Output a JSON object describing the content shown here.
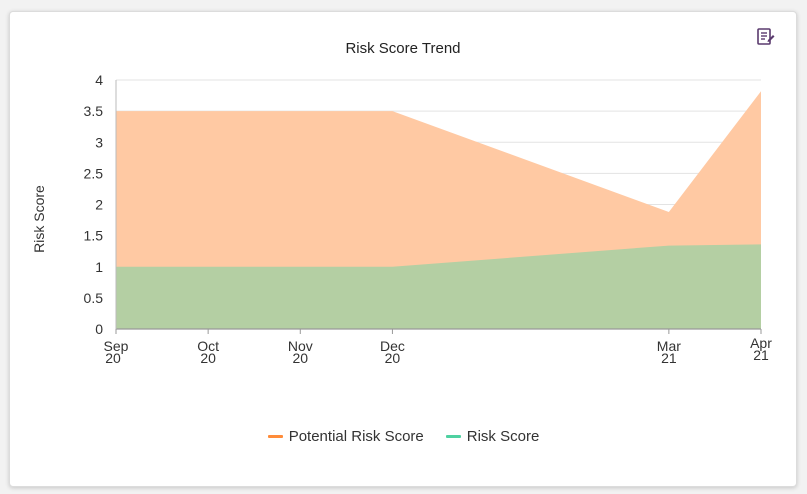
{
  "chart_data": {
    "type": "area",
    "title": "Risk Score Trend",
    "ylabel": "Risk Score",
    "xlabel": "",
    "ylim": [
      0,
      4
    ],
    "yticks": [
      "0",
      "0.5",
      "1",
      "1.5",
      "2",
      "2.5",
      "3",
      "3.5",
      "4"
    ],
    "x": [
      "Sep 20",
      "Oct 20",
      "Nov 20",
      "Dec 20",
      "Mar 21",
      "Apr 21"
    ],
    "xticks": [
      {
        "line1": "Sep",
        "line2": "20"
      },
      {
        "line1": "Oct",
        "line2": "20"
      },
      {
        "line1": "Nov",
        "line2": "20"
      },
      {
        "line1": "Dec",
        "line2": "20"
      },
      {
        "line1": "Mar",
        "line2": "21"
      },
      {
        "line1": "Apr",
        "line2": "21"
      }
    ],
    "grid": true,
    "legend_position": "bottom",
    "series": [
      {
        "name": "Potential Risk Score",
        "values": [
          3.5,
          3.5,
          3.5,
          3.5,
          1.88,
          3.82
        ],
        "color": "#ff8c3a",
        "fill": "#ffc9a3"
      },
      {
        "name": "Risk Score",
        "values": [
          1.0,
          1.0,
          1.0,
          1.0,
          1.34,
          1.36
        ],
        "color": "#4fd1a1",
        "fill": "#b4cfa3"
      }
    ]
  },
  "toolbar": {
    "export_icon": "report-export-icon"
  }
}
